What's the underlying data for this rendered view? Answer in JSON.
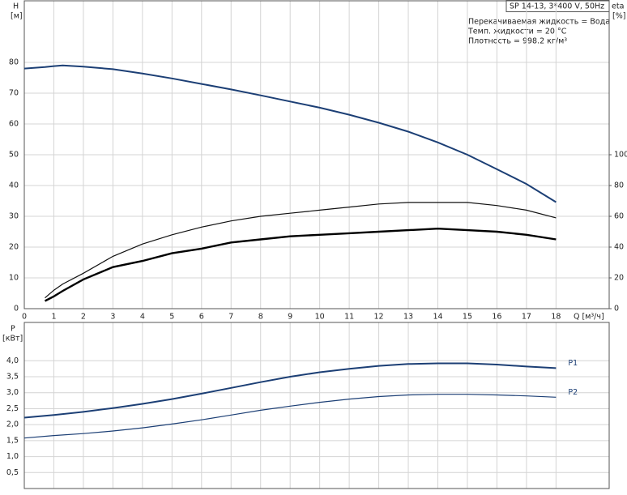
{
  "chart_data": [
    {
      "type": "line",
      "title": "SP 14-13, 3*400 V, 50Hz",
      "notes": [
        "Перекачиваемая жидкость = Вода",
        "Темп. жидкости = 20 °C",
        "Плотность = 998.2 кг/м³"
      ],
      "y_label": "H",
      "y_unit": "[м]",
      "y2_label": "eta",
      "y2_unit": "[%]",
      "x_label": "Q [м³/ч]",
      "x": [
        0,
        0.7,
        1,
        1.3,
        2,
        3,
        4,
        5,
        6,
        7,
        8,
        9,
        10,
        11,
        12,
        13,
        14,
        15,
        16,
        17,
        18
      ],
      "xlim": [
        0,
        19.8
      ],
      "xticks": [
        0,
        1,
        2,
        3,
        4,
        5,
        6,
        7,
        8,
        9,
        10,
        11,
        12,
        13,
        14,
        15,
        16,
        17,
        18
      ],
      "ylim": [
        0,
        100
      ],
      "yticks": [
        0,
        10,
        20,
        30,
        40,
        50,
        60,
        70,
        80
      ],
      "y2lim": [
        0,
        200
      ],
      "y2ticks": [
        0,
        20,
        40,
        60,
        80,
        100
      ],
      "grid": true,
      "series": [
        {
          "color": "#1c3f75",
          "width": 2,
          "values": [
            78,
            78.5,
            78.8,
            79,
            78.6,
            77.8,
            76.4,
            74.8,
            73,
            71.2,
            69.3,
            67.3,
            65.3,
            63,
            60.4,
            57.5,
            54,
            50,
            45.3,
            40.5,
            34.6
          ]
        },
        {
          "color": "#111111",
          "width": 1.2,
          "axis": "y2",
          "values": [
            null,
            7,
            12,
            16,
            23,
            34,
            42,
            48,
            53,
            57,
            60,
            62,
            64,
            66,
            68,
            69,
            69,
            69,
            67,
            64,
            59
          ]
        },
        {
          "color": "#000000",
          "width": 2.4,
          "axis": "y2",
          "values": [
            null,
            5,
            8,
            11.5,
            19,
            27,
            31,
            36,
            39,
            43,
            45,
            47,
            48,
            49,
            50,
            51,
            52,
            51,
            50,
            48,
            45
          ]
        }
      ]
    },
    {
      "type": "line",
      "y_label": "P",
      "y_unit": "[кВт]",
      "x": [
        0,
        1,
        2,
        3,
        4,
        5,
        6,
        7,
        8,
        9,
        10,
        11,
        12,
        13,
        14,
        15,
        16,
        17,
        18
      ],
      "xlim": [
        0,
        19.8
      ],
      "xticks": [
        0,
        1,
        2,
        3,
        4,
        5,
        6,
        7,
        8,
        9,
        10,
        11,
        12,
        13,
        14,
        15,
        16,
        17,
        18
      ],
      "ylim": [
        0,
        5.2
      ],
      "yticks": [
        {
          "value": 0.5,
          "label": "0,5"
        },
        {
          "value": 1,
          "label": "1,0"
        },
        {
          "value": 1.5,
          "label": "1,5"
        },
        {
          "value": 2,
          "label": "2,0"
        },
        {
          "value": 2.5,
          "label": "2,5"
        },
        {
          "value": 3,
          "label": "3,0"
        },
        {
          "value": 3.5,
          "label": "3,5"
        },
        {
          "value": 4,
          "label": "4,0"
        }
      ],
      "grid": true,
      "series": [
        {
          "name": "P1",
          "color": "#1c3f75",
          "width": 2,
          "values": [
            2.22,
            2.3,
            2.4,
            2.52,
            2.65,
            2.8,
            2.97,
            3.15,
            3.33,
            3.5,
            3.64,
            3.75,
            3.84,
            3.9,
            3.92,
            3.92,
            3.88,
            3.82,
            3.77
          ]
        },
        {
          "name": "P2",
          "color": "#1c3f75",
          "width": 1.2,
          "values": [
            1.58,
            1.66,
            1.72,
            1.8,
            1.9,
            2.02,
            2.15,
            2.3,
            2.45,
            2.58,
            2.7,
            2.8,
            2.88,
            2.93,
            2.95,
            2.95,
            2.93,
            2.9,
            2.86
          ]
        }
      ]
    }
  ]
}
